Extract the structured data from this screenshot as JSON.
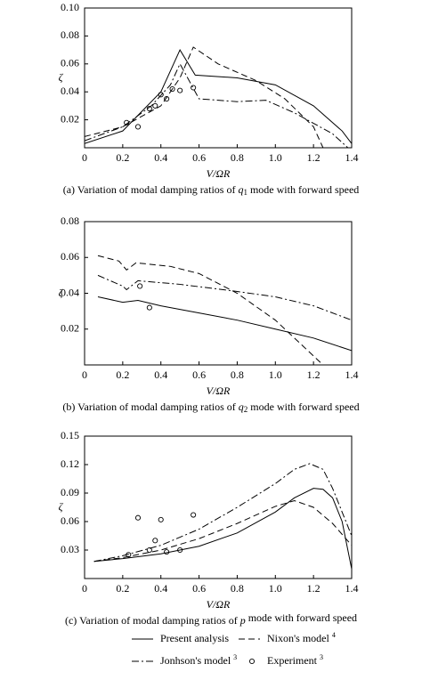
{
  "chart_data": [
    {
      "type": "line",
      "caption": [
        "(a) Variation of modal damping ratios of ",
        "q",
        "1",
        " mode with forward speed"
      ],
      "x_label": "V/ΩR",
      "y_label": "ζ",
      "xlim": [
        0,
        1.4
      ],
      "xticks": [
        0,
        0.2,
        0.4,
        0.6,
        0.8,
        {
          "value": 1,
          "label": "1.0"
        },
        1.2,
        1.4
      ],
      "ylim": [
        0,
        0.1
      ],
      "yticks": [
        0.02,
        0.04,
        0.06,
        0.08,
        {
          "value": 0.1,
          "label": "0.10"
        }
      ],
      "series": [
        {
          "name": "Present analysis",
          "color": "#000000",
          "style": "solid",
          "x": [
            0,
            0.2,
            0.4,
            0.5,
            0.58,
            0.8,
            1.0,
            1.2,
            1.35,
            1.4
          ],
          "values": [
            0.003,
            0.012,
            0.04,
            0.07,
            0.052,
            0.05,
            0.045,
            0.03,
            0.012,
            0.003
          ]
        },
        {
          "name": "Nixon's model",
          "ref": "4",
          "color": "#000000",
          "style": "dashed",
          "x": [
            0,
            0.2,
            0.4,
            0.5,
            0.57,
            0.7,
            0.9,
            1.05,
            1.2,
            1.25
          ],
          "values": [
            0.008,
            0.015,
            0.03,
            0.05,
            0.072,
            0.06,
            0.048,
            0.035,
            0.015,
            0
          ]
        },
        {
          "name": "Jonhson's model",
          "ref": "3",
          "color": "#000000",
          "style": "dashdot",
          "x": [
            0,
            0.2,
            0.35,
            0.45,
            0.5,
            0.6,
            0.8,
            0.95,
            1.1,
            1.3,
            1.38
          ],
          "values": [
            0.005,
            0.015,
            0.03,
            0.045,
            0.06,
            0.035,
            0.033,
            0.034,
            0.025,
            0.01,
            0
          ]
        },
        {
          "name": "Experiment",
          "ref": "3",
          "color": "#000000",
          "marker": "circle",
          "x": [
            0.22,
            0.28,
            0.34,
            0.37,
            0.4,
            0.43,
            0.46,
            0.5,
            0.57
          ],
          "values": [
            0.018,
            0.015,
            0.028,
            0.03,
            0.038,
            0.035,
            0.042,
            0.041,
            0.043
          ]
        }
      ]
    },
    {
      "type": "line",
      "caption": [
        "(b) Variation of modal damping ratios of ",
        "q",
        "2",
        " mode with forward speed"
      ],
      "x_label": "V/ΩR",
      "y_label": "ζ",
      "xlim": [
        0,
        1.4
      ],
      "xticks": [
        0,
        0.2,
        0.4,
        0.6,
        0.8,
        {
          "value": 1,
          "label": "1.0"
        },
        1.2,
        1.4
      ],
      "ylim": [
        0,
        0.08
      ],
      "yticks": [
        0.02,
        0.04,
        0.06,
        0.08
      ],
      "series": [
        {
          "name": "Present analysis",
          "color": "#000000",
          "style": "solid",
          "x": [
            0.07,
            0.2,
            0.28,
            0.4,
            0.6,
            0.8,
            1.0,
            1.2,
            1.4
          ],
          "values": [
            0.038,
            0.035,
            0.036,
            0.033,
            0.029,
            0.025,
            0.02,
            0.015,
            0.008
          ]
        },
        {
          "name": "Nixon's model",
          "ref": "4",
          "color": "#000000",
          "style": "dashed",
          "x": [
            0.07,
            0.18,
            0.22,
            0.27,
            0.45,
            0.6,
            0.8,
            1.0,
            1.1,
            1.25
          ],
          "values": [
            0.061,
            0.058,
            0.053,
            0.057,
            0.055,
            0.051,
            0.04,
            0.025,
            0.015,
            0
          ]
        },
        {
          "name": "Jonhson's model",
          "ref": "3",
          "color": "#000000",
          "style": "dashdot",
          "x": [
            0.07,
            0.2,
            0.22,
            0.28,
            0.5,
            0.8,
            1.0,
            1.2,
            1.4
          ],
          "values": [
            0.05,
            0.044,
            0.042,
            0.047,
            0.045,
            0.041,
            0.038,
            0.033,
            0.025
          ]
        },
        {
          "name": "Experiment",
          "ref": "3",
          "color": "#000000",
          "marker": "circle",
          "x": [
            0.29,
            0.34
          ],
          "values": [
            0.044,
            0.032
          ]
        }
      ]
    },
    {
      "type": "line",
      "caption": [
        "(c) Variation of modal damping ratios of ",
        "p",
        "",
        " mode with forward speed"
      ],
      "x_label": "V/ΩR",
      "y_label": "ζ",
      "xlim": [
        0,
        1.4
      ],
      "xticks": [
        0,
        0.2,
        0.4,
        0.6,
        0.8,
        {
          "value": 1,
          "label": "1.0"
        },
        1.2,
        1.4
      ],
      "ylim": [
        0,
        0.15
      ],
      "yticks": [
        0.03,
        0.06,
        0.09,
        0.12,
        0.15
      ],
      "series": [
        {
          "name": "Present analysis",
          "color": "#000000",
          "style": "solid",
          "x": [
            0.05,
            0.2,
            0.4,
            0.6,
            0.8,
            1.0,
            1.1,
            1.2,
            1.25,
            1.3,
            1.35,
            1.4
          ],
          "values": [
            0.018,
            0.021,
            0.026,
            0.034,
            0.048,
            0.07,
            0.085,
            0.095,
            0.094,
            0.085,
            0.06,
            0.01
          ]
        },
        {
          "name": "Nixon's model",
          "ref": "4",
          "color": "#000000",
          "style": "dashed",
          "x": [
            0.05,
            0.2,
            0.4,
            0.6,
            0.8,
            1.0,
            1.1,
            1.2,
            1.3,
            1.4
          ],
          "values": [
            0.018,
            0.022,
            0.03,
            0.042,
            0.058,
            0.076,
            0.082,
            0.075,
            0.058,
            0.035
          ]
        },
        {
          "name": "Jonhson's model",
          "ref": "3",
          "color": "#000000",
          "style": "dashdot",
          "x": [
            0.05,
            0.2,
            0.4,
            0.6,
            0.8,
            1.0,
            1.1,
            1.18,
            1.25,
            1.3,
            1.4
          ],
          "values": [
            0.018,
            0.024,
            0.035,
            0.052,
            0.075,
            0.1,
            0.115,
            0.121,
            0.115,
            0.095,
            0.045
          ]
        },
        {
          "name": "Experiment",
          "ref": "3",
          "color": "#000000",
          "marker": "circle",
          "x": [
            0.23,
            0.28,
            0.34,
            0.37,
            0.4,
            0.43,
            0.5,
            0.57
          ],
          "values": [
            0.025,
            0.064,
            0.03,
            0.04,
            0.062,
            0.028,
            0.03,
            0.067
          ]
        }
      ]
    }
  ]
}
